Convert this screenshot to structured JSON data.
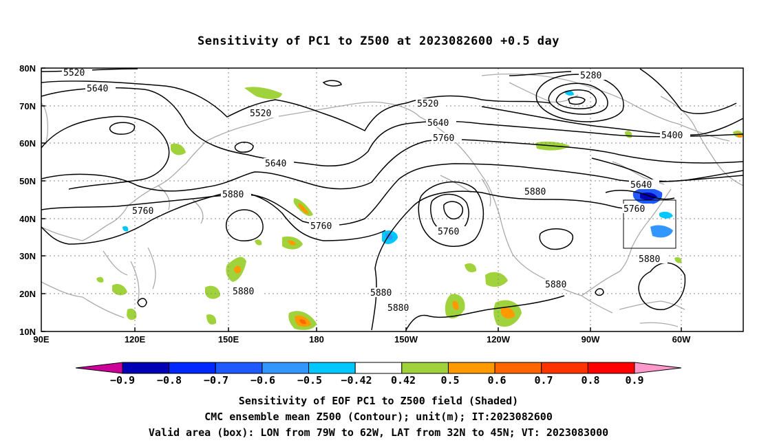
{
  "title": "Sensitivity of PC1 to Z500 at 2023082600 +0.5 day",
  "map": {
    "lat_labels": [
      "80N",
      "70N",
      "60N",
      "50N",
      "40N",
      "30N",
      "20N",
      "10N"
    ],
    "lon_labels": [
      "90E",
      "120E",
      "150E",
      "180",
      "150W",
      "120W",
      "90W",
      "60W"
    ],
    "contour_labels": [
      "5520",
      "5640",
      "5520",
      "5640",
      "5760",
      "5880",
      "5760",
      "5520",
      "5640",
      "5760",
      "5760",
      "5880",
      "5280",
      "5400",
      "5640",
      "5760",
      "5880",
      "5880",
      "5880",
      "5880",
      "5880"
    ],
    "valid_box": {
      "lon_from": "79W",
      "lon_to": "62W",
      "lat_from": "32N",
      "lat_to": "45N"
    }
  },
  "colorbar": {
    "labels": [
      "−0.9",
      "−0.8",
      "−0.7",
      "−0.6",
      "−0.5",
      "−0.42",
      "0.42",
      "0.5",
      "0.6",
      "0.7",
      "0.8",
      "0.9"
    ],
    "colors": [
      "#cc0099",
      "#0000b4",
      "#0028ff",
      "#1e5aff",
      "#3296ff",
      "#00c8ff",
      "#ffffff",
      "#a0d23c",
      "#ff9900",
      "#ff6600",
      "#ff3300",
      "#ff0000",
      "#ff99cc"
    ]
  },
  "captions": {
    "line1": "Sensitivity of EOF PC1 to Z500 field (Shaded)",
    "line2": "CMC ensemble mean Z500 (Contour); unit(m); IT:2023082600",
    "line3": "Valid area (box): LON from 79W to 62W, LAT from 32N to 45N; VT: 2023083000"
  }
}
